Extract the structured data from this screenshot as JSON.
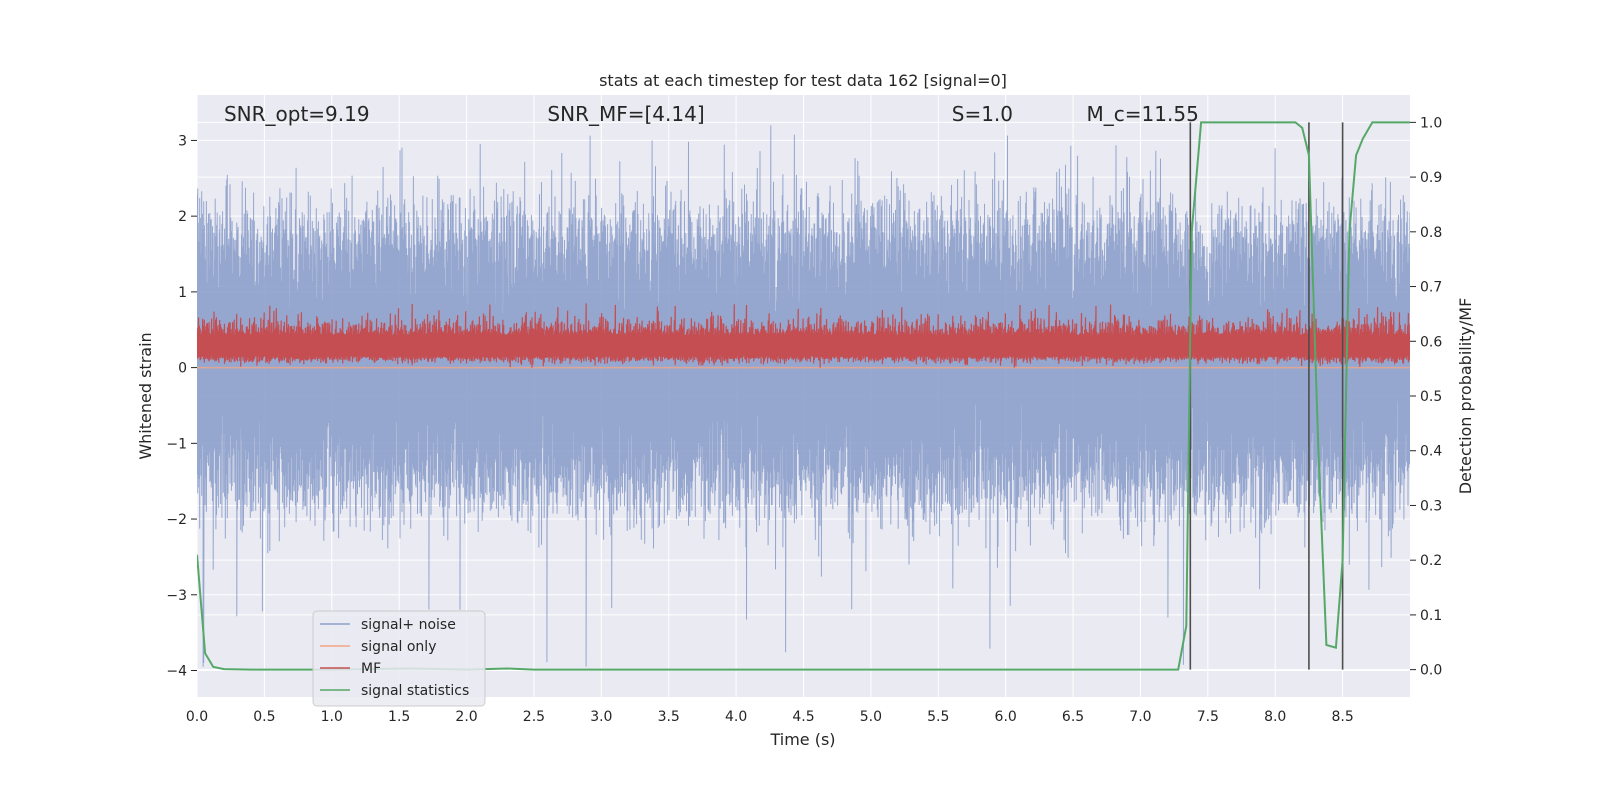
{
  "chart_data": {
    "type": "line",
    "title": "stats at each timestep for test data 162 [signal=0]",
    "xlabel": "Time (s)",
    "ylabel": "Whitened strain",
    "ylabel_right": "Detection probability/MF",
    "xlim": [
      0.0,
      9.0
    ],
    "ylim": [
      -4.35,
      3.6
    ],
    "ylim_right": [
      -0.05,
      1.05
    ],
    "xticks": [
      0.0,
      0.5,
      1.0,
      1.5,
      2.0,
      2.5,
      3.0,
      3.5,
      4.0,
      4.5,
      5.0,
      5.5,
      6.0,
      6.5,
      7.0,
      7.5,
      8.0,
      8.5
    ],
    "xtick_labels": [
      "0.0",
      "0.5",
      "1.0",
      "1.5",
      "2.0",
      "2.5",
      "3.0",
      "3.5",
      "4.0",
      "4.5",
      "5.0",
      "5.5",
      "6.0",
      "6.5",
      "7.0",
      "7.5",
      "8.0",
      "8.5"
    ],
    "yticks": [
      -4,
      -3,
      -2,
      -1,
      0,
      1,
      2,
      3
    ],
    "ytick_labels": [
      "−4",
      "−3",
      "−2",
      "−1",
      "0",
      "1",
      "2",
      "3"
    ],
    "yticks_right": [
      0.0,
      0.1,
      0.2,
      0.3,
      0.4,
      0.5,
      0.6,
      0.7,
      0.8,
      0.9,
      1.0
    ],
    "ytick_labels_right": [
      "0.0",
      "0.1",
      "0.2",
      "0.3",
      "0.4",
      "0.5",
      "0.6",
      "0.7",
      "0.8",
      "0.9",
      "1.0"
    ],
    "annotations": [
      {
        "name": "snr-opt-annotation",
        "text": "SNR_opt=9.19",
        "x": 0.2
      },
      {
        "name": "snr-mf-annotation",
        "text": "SNR_MF=[4.14]",
        "x": 2.6
      },
      {
        "name": "s-annotation",
        "text": "S=1.0",
        "x": 5.6
      },
      {
        "name": "mc-annotation",
        "text": "M_c=11.55",
        "x": 6.6
      }
    ],
    "noise_band": {
      "mean": -0.4,
      "typical_hi": 1.75,
      "typical_lo": -1.55,
      "peak_max": 3.2,
      "peak_min": -4.0
    },
    "mf_band": {
      "mean": 0.25,
      "lo": 0.05,
      "hi": 0.85
    },
    "signal_only_level": 0.0,
    "vertical_markers_x": [
      7.37,
      8.25,
      8.5
    ],
    "vertical_markers_range": [
      0.0,
      1.0
    ],
    "series": [
      {
        "name": "signal+ noise",
        "color": "#8da0cb",
        "style": "noise"
      },
      {
        "name": "signal only",
        "color": "#f4a582",
        "style": "flat"
      },
      {
        "name": "MF",
        "color": "#c44e52",
        "style": "mf"
      },
      {
        "name": "signal statistics",
        "color": "#55a868",
        "axis": "right",
        "x": [
          0.0,
          0.06,
          0.12,
          0.2,
          0.4,
          1.0,
          1.6,
          2.0,
          2.3,
          2.5,
          3.0,
          5.0,
          6.0,
          6.5,
          7.0,
          7.28,
          7.34,
          7.38,
          7.45,
          7.55,
          8.0,
          8.15,
          8.2,
          8.25,
          8.32,
          8.38,
          8.45,
          8.5,
          8.55,
          8.6,
          8.65,
          8.72,
          9.0
        ],
        "y": [
          0.21,
          0.03,
          0.005,
          0.001,
          0.0,
          0.0,
          0.002,
          0.0,
          0.002,
          0.0,
          0.0,
          0.0,
          0.0,
          0.0,
          0.0,
          0.0,
          0.08,
          0.8,
          1.0,
          1.0,
          1.0,
          1.0,
          0.99,
          0.94,
          0.4,
          0.045,
          0.04,
          0.2,
          0.8,
          0.94,
          0.97,
          1.0,
          1.0
        ]
      }
    ],
    "legend": {
      "position": "lower-left",
      "entries": [
        "signal+ noise",
        "signal only",
        "MF",
        "signal statistics"
      ]
    },
    "grid": true,
    "colors": {
      "plot_bg": "#eaeaf2",
      "grid": "#ffffff",
      "marker": "#4d4d4d"
    }
  }
}
